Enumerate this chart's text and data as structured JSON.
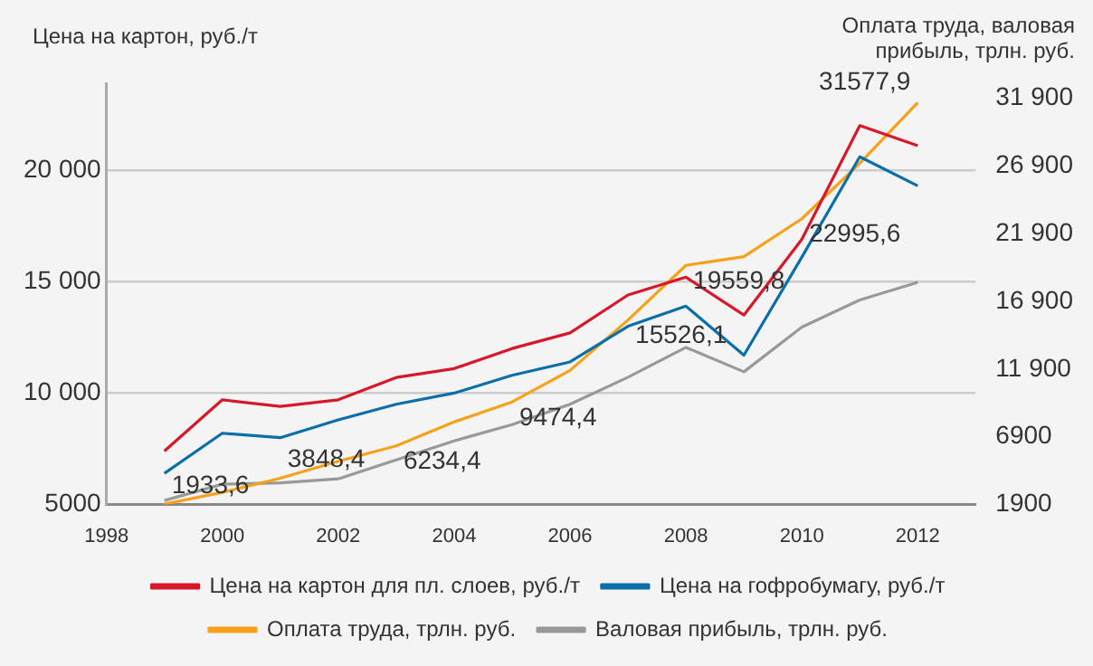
{
  "chart_data": {
    "type": "line",
    "ylabel": "Цена на картон, руб./т",
    "y2label": "Оплата труда, валовая прибыль, трлн. руб.",
    "x": [
      1999,
      2000,
      2001,
      2002,
      2003,
      2004,
      2005,
      2006,
      2007,
      2008,
      2009,
      2010,
      2011,
      2012
    ],
    "xlim": [
      1998,
      2013
    ],
    "xticks": [
      1998,
      2000,
      2002,
      2004,
      2006,
      2008,
      2010,
      2012
    ],
    "ylim": [
      5000,
      23900
    ],
    "yticks": [
      {
        "value": 5000,
        "label": "5000"
      },
      {
        "value": 10000,
        "label": "10 000"
      },
      {
        "value": 15000,
        "label": "15 000"
      },
      {
        "value": 20000,
        "label": "20 000"
      }
    ],
    "y2lim": [
      1900,
      33000
    ],
    "y2ticks": [
      1900,
      6900,
      {
        "value": 11900,
        "label": "11 900"
      },
      {
        "value": 16900,
        "label": "16 900"
      },
      {
        "value": 21900,
        "label": "21 900"
      },
      {
        "value": 26900,
        "label": "26 900"
      },
      {
        "value": 31900,
        "label": "31 900"
      }
    ],
    "series": [
      {
        "name": "Цена на картон для пл. слоев, руб./т",
        "color": "#d7182a",
        "values": [
          7400,
          9700,
          9400,
          9700,
          10700,
          11100,
          12000,
          12700,
          14400,
          15200,
          13500,
          16900,
          22000,
          21100
        ]
      },
      {
        "name": "Цена на гофробумагу, руб./т",
        "color": "#0a6fa8",
        "values": [
          6400,
          8200,
          8000,
          8800,
          9500,
          10000,
          10800,
          11400,
          13000,
          13900,
          11700,
          16100,
          20600,
          19300
        ]
      },
      {
        "name": "Оплата труда, трлн. руб.",
        "color": "#f7a11a",
        "axis": "y2",
        "values": [
          1933.6,
          2800,
          3848.4,
          5100,
          6234.4,
          8000,
          9474.4,
          11800,
          15526.1,
          19559.8,
          20200,
          22995.6,
          27100,
          31577.9
        ],
        "value_labels": [
          "1933,6",
          null,
          "3848,4",
          null,
          "6234,4",
          null,
          "9474,4",
          null,
          "15526,1",
          "19559,8",
          null,
          "22995,6",
          null,
          "31577,9"
        ]
      },
      {
        "name": "Валовая прибыль, трлн. руб.",
        "color": "#999999",
        "axis": "y2",
        "values": [
          2200,
          3400,
          3500,
          3800,
          5200,
          6600,
          7800,
          9300,
          11300,
          13500,
          11700,
          15000,
          17000,
          18300
        ]
      }
    ],
    "grid": "y",
    "legend": "bottom",
    "marker": "none",
    "line_style": "solid"
  }
}
